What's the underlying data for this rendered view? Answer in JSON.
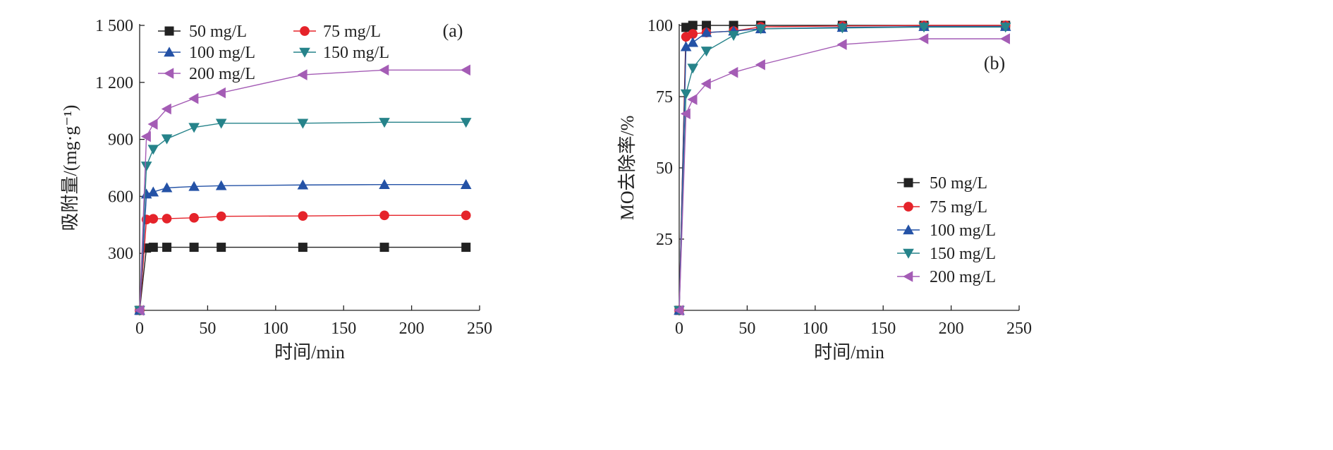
{
  "chart_data": [
    {
      "type": "line",
      "panel_label": "(a)",
      "xlabel": "时间/min",
      "ylabel": "吸附量/(mg·g⁻¹)",
      "xlim": [
        0,
        250
      ],
      "ylim": [
        0,
        1500
      ],
      "xticks": [
        0,
        50,
        100,
        150,
        200,
        250
      ],
      "xtick_labels": [
        "0",
        "50",
        "100",
        "150",
        "200",
        "250"
      ],
      "yticks": [
        300,
        600,
        900,
        1200,
        1500
      ],
      "ytick_labels": [
        "300",
        "600",
        "900",
        "1 200",
        "1 500"
      ],
      "grid": false,
      "legend": "top, two columns",
      "series": [
        {
          "name": "50 mg/L",
          "color": "#222222",
          "marker": "square",
          "x": [
            0,
            5,
            10,
            20,
            40,
            60,
            120,
            180,
            240
          ],
          "y": [
            0,
            328,
            332,
            332,
            332,
            332,
            332,
            332,
            332
          ]
        },
        {
          "name": "75 mg/L",
          "color": "#e5232a",
          "marker": "circle",
          "x": [
            0,
            5,
            10,
            20,
            40,
            60,
            120,
            180,
            240
          ],
          "y": [
            0,
            478,
            482,
            483,
            487,
            495,
            497,
            500,
            500
          ]
        },
        {
          "name": "100 mg/L",
          "color": "#2452a6",
          "marker": "triangle-up",
          "x": [
            0,
            5,
            10,
            20,
            40,
            60,
            120,
            180,
            240
          ],
          "y": [
            0,
            612,
            623,
            645,
            652,
            656,
            660,
            662,
            662
          ]
        },
        {
          "name": "150 mg/L",
          "color": "#26838a",
          "marker": "triangle-down",
          "x": [
            0,
            5,
            10,
            20,
            40,
            60,
            120,
            180,
            240
          ],
          "y": [
            0,
            760,
            848,
            903,
            963,
            985,
            985,
            990,
            990
          ]
        },
        {
          "name": "200 mg/L",
          "color": "#a45cb5",
          "marker": "triangle-left",
          "x": [
            0,
            5,
            10,
            20,
            40,
            60,
            120,
            180,
            240
          ],
          "y": [
            0,
            915,
            980,
            1060,
            1115,
            1145,
            1240,
            1265,
            1265
          ]
        }
      ]
    },
    {
      "type": "line",
      "panel_label": "(b)",
      "xlabel": "时间/min",
      "ylabel": "MO去除率/%",
      "xlim": [
        0,
        250
      ],
      "ylim": [
        0,
        100
      ],
      "xticks": [
        0,
        50,
        100,
        150,
        200,
        250
      ],
      "xtick_labels": [
        "0",
        "50",
        "100",
        "150",
        "200",
        "250"
      ],
      "yticks": [
        25,
        50,
        75,
        100
      ],
      "ytick_labels": [
        "25",
        "50",
        "75",
        "100"
      ],
      "grid": false,
      "legend": "bottom-right",
      "series": [
        {
          "name": "50 mg/L",
          "color": "#222222",
          "marker": "square",
          "x": [
            0,
            5,
            10,
            20,
            40,
            60,
            120,
            180,
            240
          ],
          "y": [
            0,
            99.3,
            100,
            100,
            100,
            100,
            100,
            100,
            100
          ]
        },
        {
          "name": "75 mg/L",
          "color": "#e5232a",
          "marker": "circle",
          "x": [
            0,
            5,
            10,
            20,
            40,
            60,
            120,
            180,
            240
          ],
          "y": [
            0,
            96,
            97,
            97.5,
            98,
            99.5,
            99.8,
            100,
            100
          ]
        },
        {
          "name": "100 mg/L",
          "color": "#2452a6",
          "marker": "triangle-up",
          "x": [
            0,
            5,
            10,
            20,
            40,
            60,
            120,
            180,
            240
          ],
          "y": [
            0,
            92.5,
            94,
            97.5,
            98,
            98.8,
            99.3,
            99.6,
            99.6
          ]
        },
        {
          "name": "150 mg/L",
          "color": "#26838a",
          "marker": "triangle-down",
          "x": [
            0,
            5,
            10,
            20,
            40,
            60,
            120,
            180,
            240
          ],
          "y": [
            0,
            76,
            85,
            91,
            96.5,
            98.8,
            99.1,
            99.4,
            99.4
          ]
        },
        {
          "name": "200 mg/L",
          "color": "#a45cb5",
          "marker": "triangle-left",
          "x": [
            0,
            5,
            10,
            20,
            40,
            60,
            120,
            180,
            240
          ],
          "y": [
            0,
            69,
            74,
            79.5,
            83.5,
            86.2,
            93.3,
            95.3,
            95.3
          ]
        }
      ]
    }
  ]
}
